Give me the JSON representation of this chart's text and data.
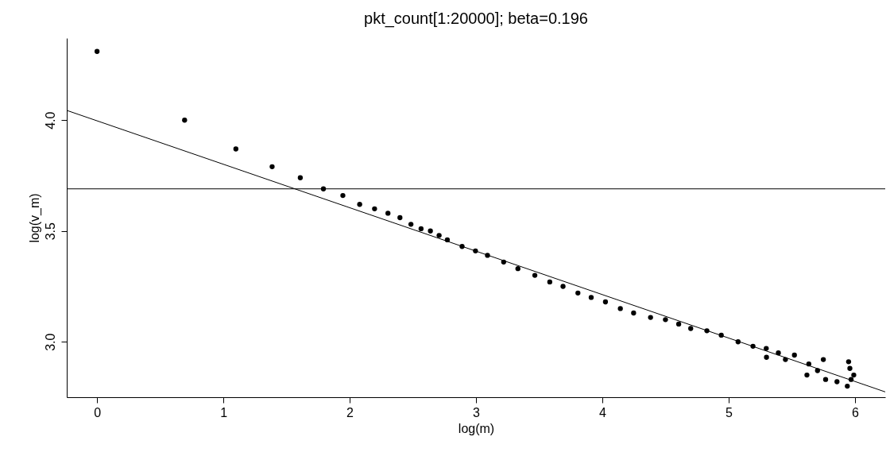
{
  "chart_data": {
    "type": "scatter",
    "title": "pkt_count[1:20000]; beta=0.196",
    "xlabel": "log(m)",
    "ylabel": "log(v_m)",
    "xlim": [
      -0.24,
      6.24
    ],
    "ylim": [
      2.75,
      4.37
    ],
    "xticks": [
      0,
      1,
      2,
      3,
      4,
      5,
      6
    ],
    "yticks": [
      {
        "value": 3,
        "label": "3.0"
      },
      {
        "value": 3.5,
        "label": "3.5"
      },
      {
        "value": 4,
        "label": "4.0"
      }
    ],
    "grid": false,
    "marker": "circle",
    "series": [
      {
        "color": "#000000",
        "x": [
          0,
          0.693,
          1.099,
          1.386,
          1.609,
          1.792,
          1.946,
          2.079,
          2.197,
          2.303,
          2.398,
          2.485,
          2.565,
          2.639,
          2.708,
          2.773,
          2.89,
          2.996,
          3.091,
          3.219,
          3.332,
          3.466,
          3.584,
          3.689,
          3.807,
          3.912,
          4.025,
          4.143,
          4.248,
          4.382,
          4.5,
          4.605,
          4.7,
          4.828,
          4.942,
          5.075,
          5.193,
          5.298,
          5.394,
          5.521,
          5.635,
          5.704,
          5.768,
          5.858,
          5.94,
          5.991,
          5.62,
          5.75,
          5.95,
          5.96,
          5.97,
          5.45,
          5.3
        ],
        "values": [
          4.31,
          4.0,
          3.87,
          3.79,
          3.74,
          3.69,
          3.66,
          3.62,
          3.6,
          3.58,
          3.56,
          3.53,
          3.51,
          3.5,
          3.48,
          3.46,
          3.43,
          3.41,
          3.39,
          3.36,
          3.33,
          3.3,
          3.27,
          3.25,
          3.22,
          3.2,
          3.18,
          3.15,
          3.13,
          3.11,
          3.1,
          3.08,
          3.06,
          3.05,
          3.03,
          3.0,
          2.98,
          2.97,
          2.95,
          2.94,
          2.9,
          2.87,
          2.83,
          2.82,
          2.8,
          2.85,
          2.85,
          2.92,
          2.91,
          2.88,
          2.83,
          2.92,
          2.93
        ]
      },
      {
        "type": "line",
        "marker": "none",
        "color": "#000000",
        "x": [
          -0.24,
          6.24
        ],
        "values": [
          4.044,
          2.774
        ]
      }
    ],
    "ref_lines": [
      {
        "axis": "y",
        "value": 3.69,
        "color": "#000000"
      }
    ]
  }
}
